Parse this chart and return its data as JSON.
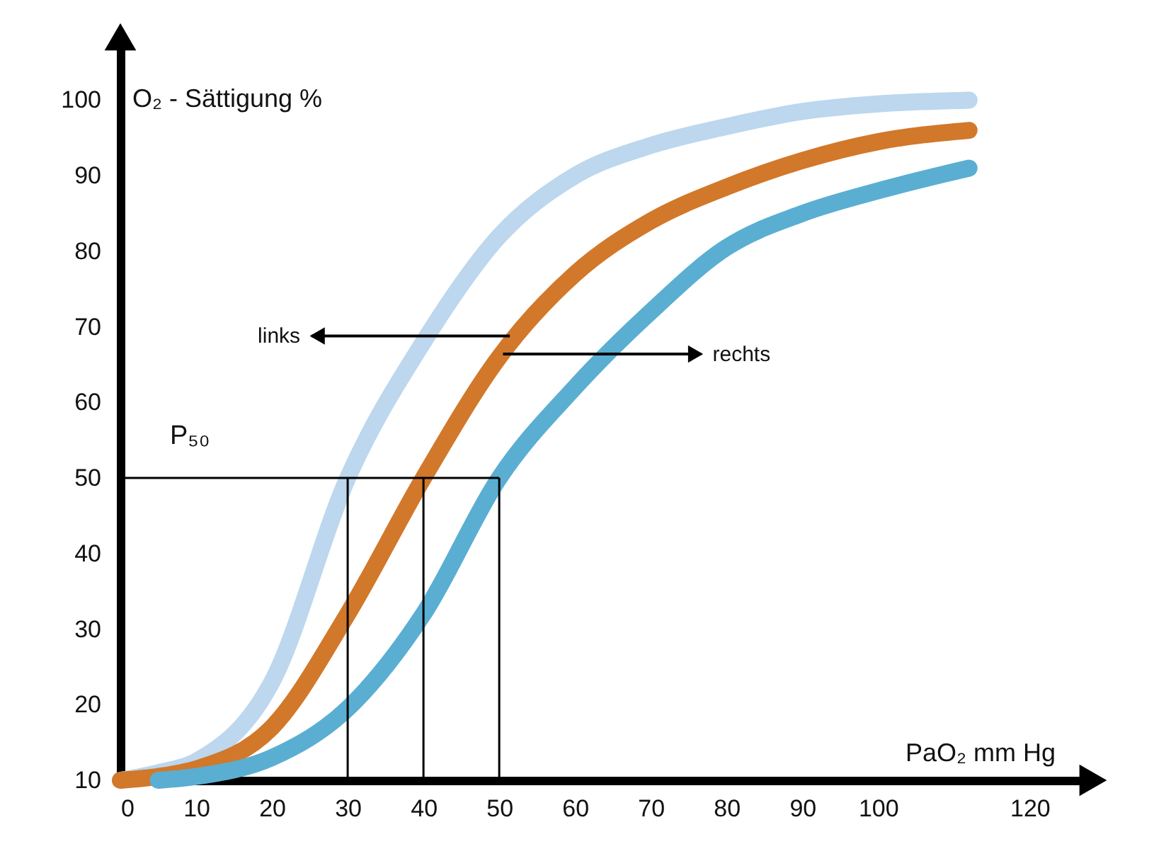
{
  "chart_data": {
    "type": "line",
    "xlabel": "PaO₂ mm Hg",
    "ylabel": "O₂ - Sättigung %",
    "xlim": [
      0,
      128
    ],
    "xticks": [
      0,
      10,
      20,
      30,
      40,
      50,
      60,
      70,
      80,
      90,
      100,
      120
    ],
    "ylim": [
      10,
      108
    ],
    "yticks": [
      10,
      20,
      30,
      40,
      50,
      60,
      70,
      80,
      90,
      100
    ],
    "series": [
      {
        "color": "#bcd7ee",
        "x": [
          0,
          5,
          10,
          20,
          30,
          40,
          50,
          60,
          70,
          80,
          90,
          100,
          112
        ],
        "values": [
          10,
          11,
          12.5,
          23,
          50,
          68,
          82,
          90,
          94,
          96.5,
          98.5,
          99.5,
          100
        ]
      },
      {
        "color": "#d2782a",
        "x": [
          0,
          5,
          10,
          20,
          30,
          40,
          50,
          60,
          70,
          80,
          90,
          100,
          112
        ],
        "values": [
          10,
          10.5,
          11.5,
          17,
          32,
          50,
          66,
          77,
          84,
          88.5,
          92,
          94.5,
          96
        ]
      },
      {
        "color": "#5aaed2",
        "x": [
          5,
          10,
          20,
          30,
          40,
          50,
          60,
          70,
          80,
          90,
          100,
          112
        ],
        "values": [
          10,
          10.5,
          13,
          19.5,
          32,
          50,
          62,
          72,
          80.5,
          85,
          88,
          91
        ]
      }
    ],
    "ref_lines": [
      {
        "axis": "y",
        "value": 50,
        "label": "P₅₀",
        "color": "#000000"
      },
      {
        "axis": "x",
        "value": 30,
        "color": "#000000"
      },
      {
        "axis": "x",
        "value": 40,
        "color": "#000000"
      },
      {
        "axis": "x",
        "value": 50,
        "color": "#000000"
      }
    ],
    "annotations": [
      {
        "text": "links",
        "x": 51.4,
        "y": 68.8
      },
      {
        "text": "rechts",
        "x": 50.5,
        "y": 66.4
      }
    ]
  }
}
